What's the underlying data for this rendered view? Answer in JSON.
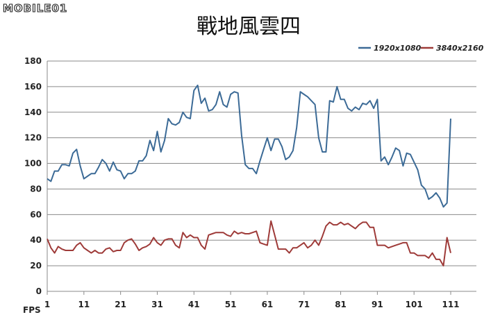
{
  "logo": {
    "text": "MOBILE01"
  },
  "chart_data": {
    "type": "line",
    "title": "戰地風雲四",
    "xlabel": "FPS",
    "ylabel": "",
    "ylim": [
      0,
      180
    ],
    "yticks": [
      0,
      20,
      40,
      60,
      80,
      100,
      120,
      140,
      160,
      180
    ],
    "xticks": [
      1,
      11,
      21,
      31,
      41,
      51,
      61,
      71,
      81,
      91,
      101,
      111
    ],
    "xlim": [
      1,
      118
    ],
    "grid": true,
    "legend_position": "top-right",
    "series": [
      {
        "name": "1920x1080",
        "color": "#3b6a96",
        "values": [
          88,
          86,
          94,
          94,
          99,
          99,
          98,
          108,
          111,
          98,
          88,
          90,
          92,
          92,
          97,
          103,
          100,
          94,
          101,
          95,
          94,
          88,
          92,
          92,
          94,
          102,
          102,
          106,
          118,
          110,
          125,
          109,
          118,
          135,
          131,
          130,
          132,
          140,
          136,
          135,
          157,
          161,
          147,
          151,
          141,
          142,
          146,
          156,
          146,
          144,
          154,
          156,
          155,
          122,
          99,
          96,
          96,
          92,
          102,
          111,
          120,
          110,
          119,
          119,
          113,
          103,
          105,
          110,
          128,
          156,
          154,
          152,
          149,
          146,
          120,
          109,
          109,
          149,
          148,
          160,
          150,
          150,
          143,
          141,
          144,
          142,
          147,
          146,
          149,
          143,
          150,
          102,
          105,
          99,
          105,
          112,
          110,
          98,
          108,
          107,
          101,
          95,
          83,
          80,
          72,
          74,
          77,
          73,
          66,
          69,
          135
        ]
      },
      {
        "name": "3840x2160",
        "color": "#9e3a38",
        "values": [
          41,
          34,
          30,
          35,
          33,
          32,
          32,
          32,
          36,
          38,
          34,
          32,
          30,
          32,
          30,
          30,
          33,
          34,
          31,
          32,
          32,
          38,
          40,
          41,
          37,
          32,
          34,
          35,
          37,
          42,
          38,
          36,
          40,
          41,
          41,
          36,
          34,
          46,
          42,
          44,
          42,
          42,
          36,
          33,
          44,
          45,
          46,
          46,
          46,
          44,
          43,
          47,
          45,
          46,
          45,
          45,
          46,
          47,
          38,
          37,
          36,
          55,
          44,
          33,
          33,
          33,
          30,
          34,
          34,
          36,
          38,
          34,
          36,
          40,
          36,
          43,
          51,
          54,
          52,
          52,
          54,
          52,
          53,
          51,
          49,
          52,
          54,
          54,
          50,
          50,
          36,
          36,
          36,
          34,
          35,
          36,
          37,
          38,
          38,
          30,
          30,
          28,
          28,
          28,
          26,
          30,
          25,
          25,
          20,
          42,
          30
        ]
      }
    ]
  }
}
